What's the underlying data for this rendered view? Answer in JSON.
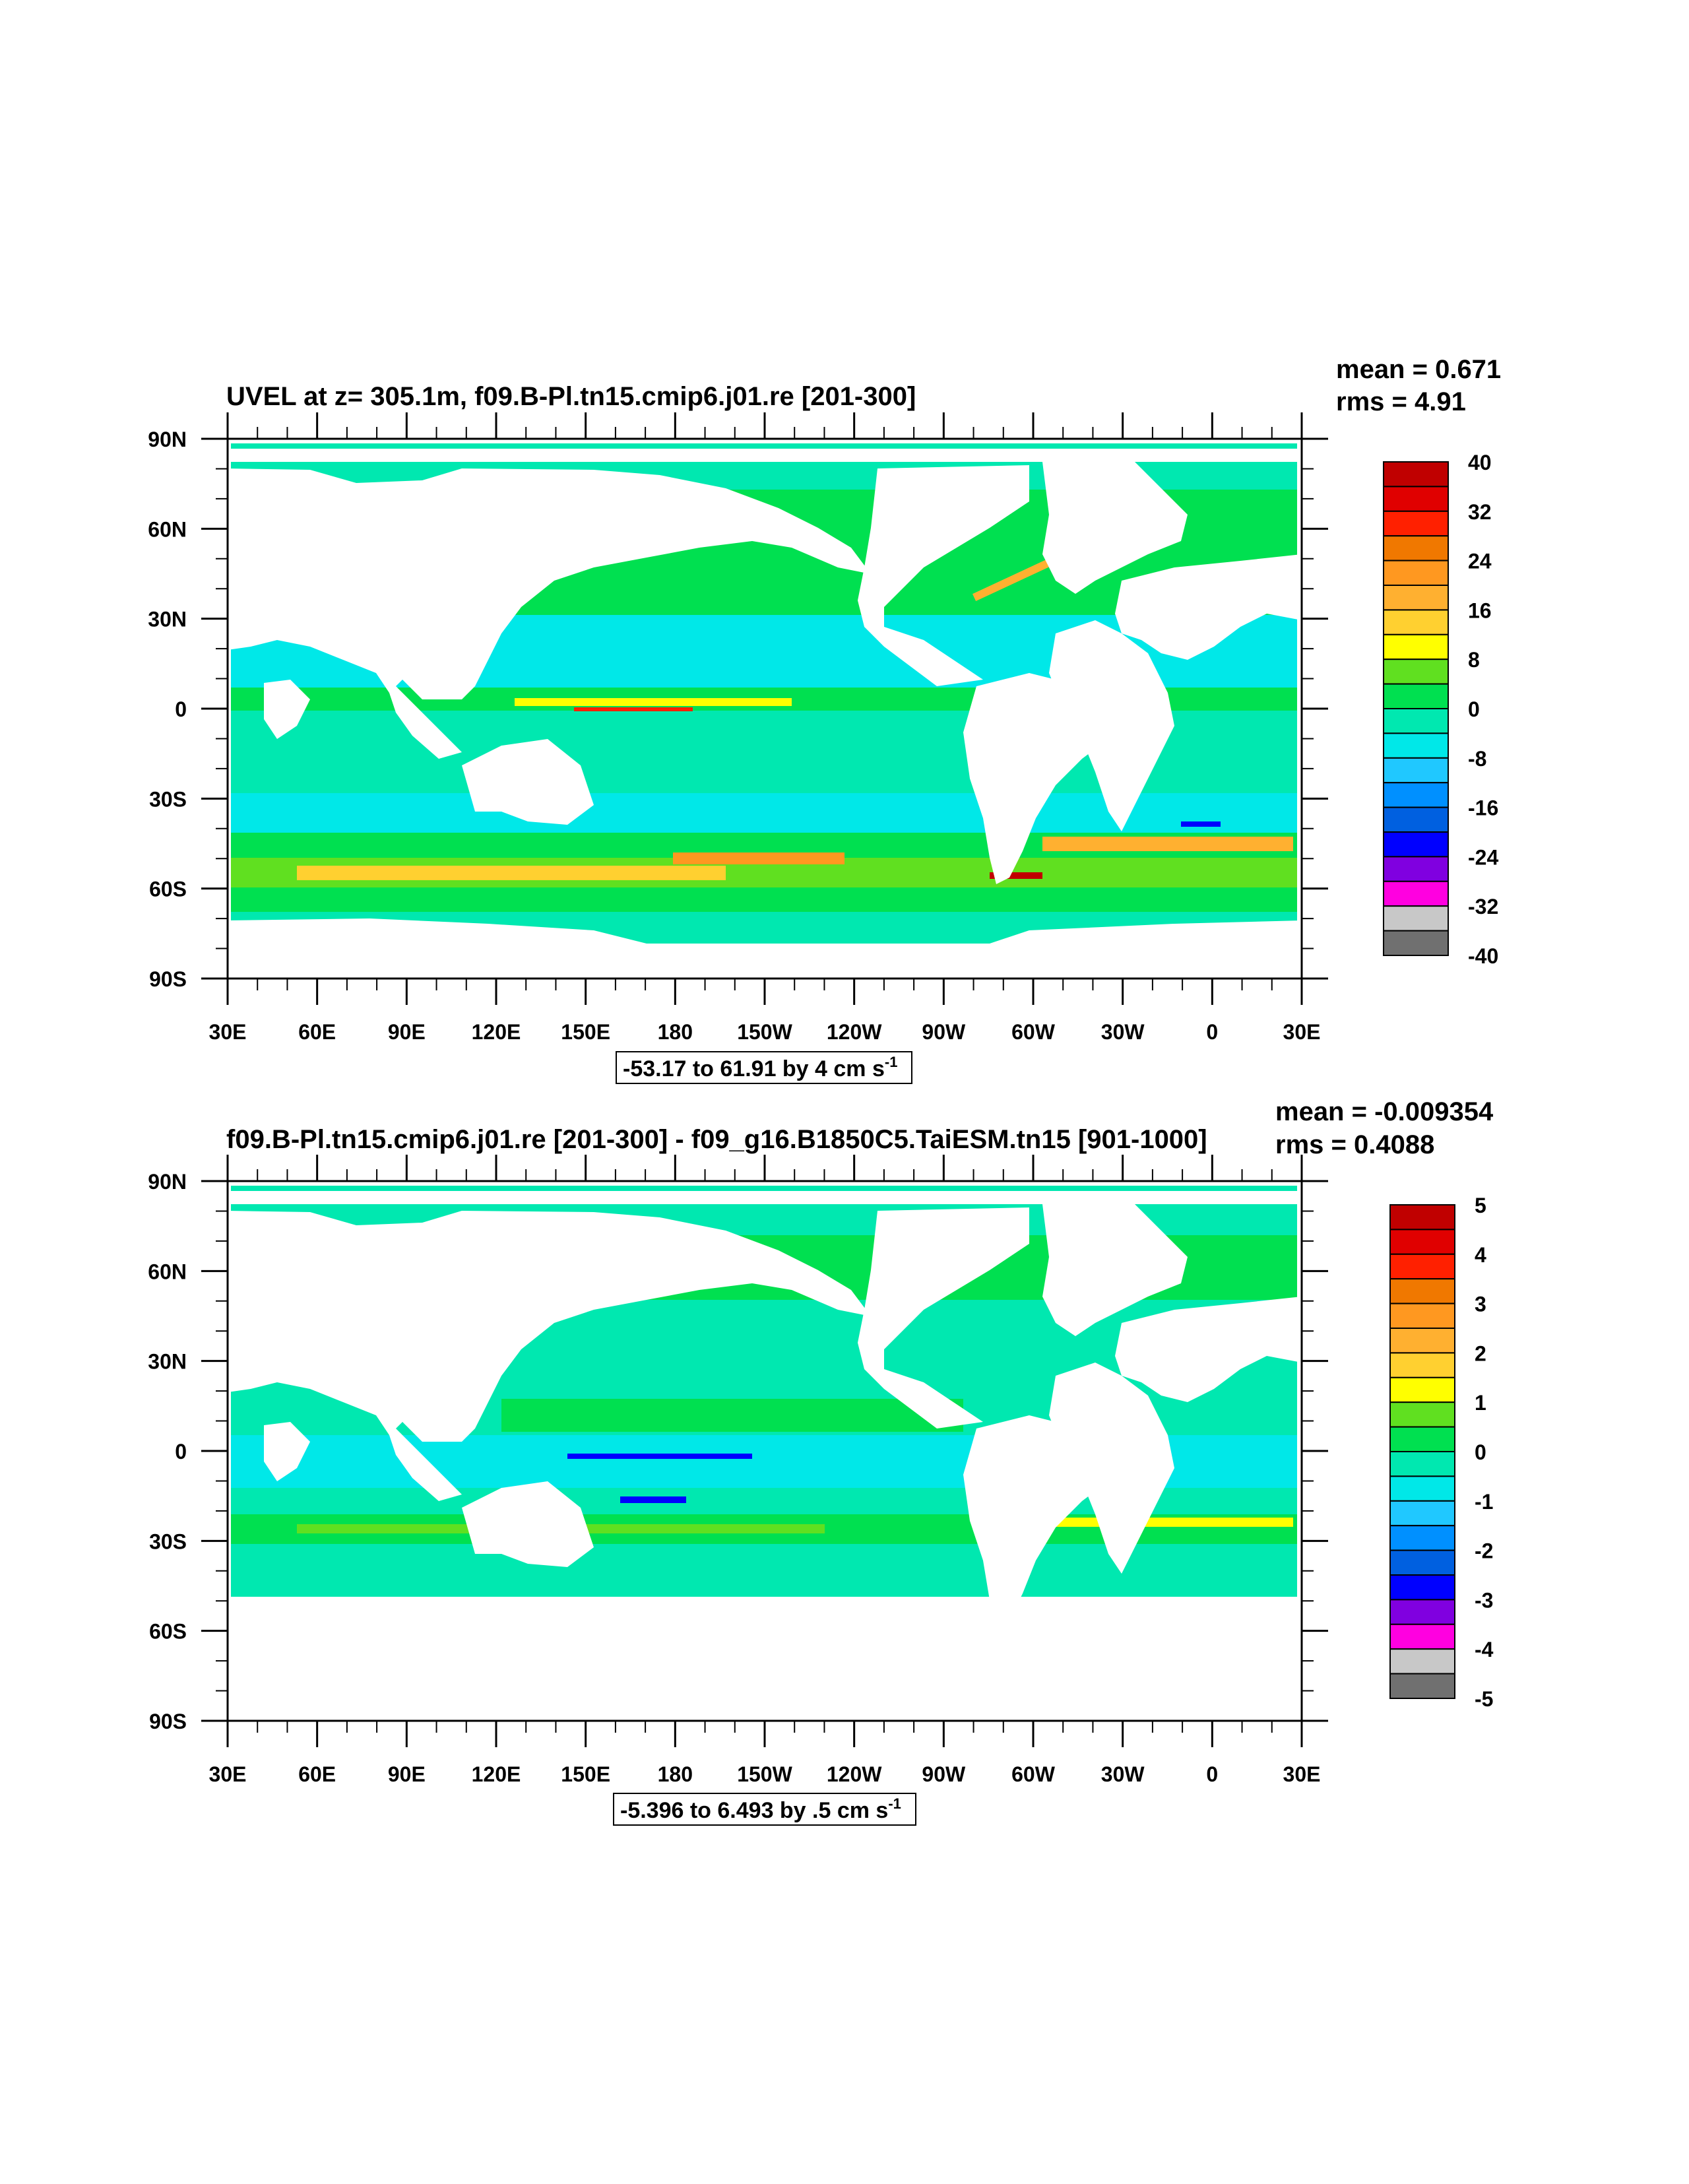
{
  "map_data": [
    {
      "id": "panel1",
      "title": "UVEL at z= 305.1m, f09.B-Pl.tn15.cmip6.j01.re [201-300]",
      "stats": {
        "mean": "mean = 0.671",
        "rms": "rms = 4.91"
      },
      "range_label": "-53.17 to 61.91 by 4 cm s",
      "range_unit_exponent": "-1",
      "lat_labels": [
        "90N",
        "60N",
        "30N",
        "0",
        "30S",
        "60S",
        "90S"
      ],
      "lon_labels": [
        "30E",
        "60E",
        "90E",
        "120E",
        "150E",
        "180",
        "150W",
        "120W",
        "90W",
        "60W",
        "30W",
        "0",
        "30E"
      ],
      "colorbar": {
        "labels": [
          "40",
          "32",
          "24",
          "16",
          "8",
          "0",
          "-8",
          "-16",
          "-24",
          "-32",
          "-40"
        ],
        "colors": [
          "#c00000",
          "#e00000",
          "#ff2000",
          "#f07800",
          "#ff9820",
          "#ffb030",
          "#ffd030",
          "#ffff00",
          "#60e020",
          "#00e050",
          "#00e8b0",
          "#00e8e8",
          "#20c8ff",
          "#0090ff",
          "#0060e0",
          "#0000ff",
          "#8000e0",
          "#ff00e0",
          "#c8c8c8",
          "#707070"
        ]
      }
    },
    {
      "id": "panel2",
      "title": "f09.B-Pl.tn15.cmip6.j01.re [201-300] - f09_g16.B1850C5.TaiESM.tn15 [901-1000]",
      "stats": {
        "mean": "mean = -0.009354",
        "rms": "rms = 0.4088"
      },
      "range_label": "-5.396 to 6.493 by .5 cm s",
      "range_unit_exponent": "-1",
      "lat_labels": [
        "90N",
        "60N",
        "30N",
        "0",
        "30S",
        "60S",
        "90S"
      ],
      "lon_labels": [
        "30E",
        "60E",
        "90E",
        "120E",
        "150E",
        "180",
        "150W",
        "120W",
        "90W",
        "60W",
        "30W",
        "0",
        "30E"
      ],
      "colorbar": {
        "labels": [
          "5",
          "4",
          "3",
          "2",
          "1",
          "0",
          "-1",
          "-2",
          "-3",
          "-4",
          "-5"
        ],
        "colors": [
          "#c00000",
          "#e00000",
          "#ff2000",
          "#f07800",
          "#ff9820",
          "#ffb030",
          "#ffd030",
          "#ffff00",
          "#60e020",
          "#00e050",
          "#00e8b0",
          "#00e8e8",
          "#20c8ff",
          "#0090ff",
          "#0060e0",
          "#0000ff",
          "#8000e0",
          "#ff00e0",
          "#c8c8c8",
          "#707070"
        ]
      }
    }
  ]
}
